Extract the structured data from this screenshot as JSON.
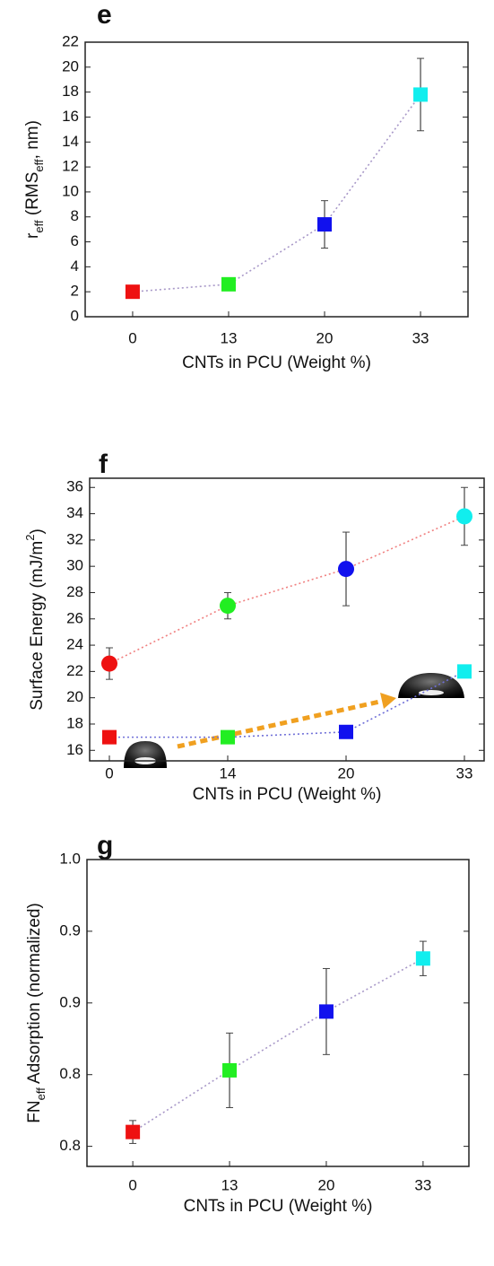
{
  "chart_data": [
    {
      "type": "line",
      "title": "e",
      "ylabel_parts": [
        {
          "text": "r"
        },
        {
          "text": "eff",
          "shift": "sub"
        },
        {
          "text": " (RMS"
        },
        {
          "text": "eff",
          "shift": "sub"
        },
        {
          "text": ", nm)"
        }
      ],
      "xlabel": "CNTs in PCU (Weight %)",
      "categories": [
        "0",
        "13",
        "20",
        "33"
      ],
      "series": [
        {
          "marker": "square",
          "line_color": "#a898c8",
          "colors": [
            "#ee1111",
            "#22ee22",
            "#1111ee",
            "#11eeee"
          ],
          "values": [
            2.0,
            2.6,
            7.4,
            17.8
          ],
          "errors": [
            0.3,
            0.3,
            1.9,
            2.9
          ]
        }
      ],
      "ylim": [
        0,
        22
      ],
      "yticks": [
        0,
        2,
        4,
        6,
        8,
        10,
        12,
        14,
        16,
        18,
        20,
        22
      ]
    },
    {
      "type": "line",
      "title": "f",
      "ylabel_parts": [
        {
          "text": "Surface Energy (mJ/m"
        },
        {
          "text": "2",
          "shift": "super"
        },
        {
          "text": ")"
        }
      ],
      "xlabel": "CNTs in PCU (Weight %)",
      "categories": [
        "0",
        "14",
        "20",
        "33"
      ],
      "series": [
        {
          "marker": "circle",
          "line_color": "#f08080",
          "colors": [
            "#ee1111",
            "#22ee22",
            "#1111ee",
            "#11eeee"
          ],
          "values": [
            22.6,
            27.0,
            29.8,
            33.8
          ],
          "errors": [
            1.2,
            1.0,
            2.8,
            2.2
          ]
        },
        {
          "marker": "square",
          "line_color": "#7070d8",
          "colors": [
            "#ee1111",
            "#22ee22",
            "#1111ee",
            "#11eeee"
          ],
          "values": [
            17.0,
            17.0,
            17.4,
            22.0
          ],
          "errors": [
            0.2,
            0.2,
            0.1,
            0.3
          ]
        }
      ],
      "ylim": [
        15.2,
        36.7
      ],
      "yticks": [
        16,
        18,
        20,
        22,
        24,
        26,
        28,
        30,
        32,
        34,
        36
      ]
    },
    {
      "type": "line",
      "title": "g",
      "ylabel_parts": [
        {
          "text": "FN"
        },
        {
          "text": "eff",
          "shift": "sub"
        },
        {
          "text": " Adsorption (normalized)"
        }
      ],
      "xlabel": "CNTs in PCU (Weight %)",
      "categories": [
        "0",
        "13",
        "20",
        "33"
      ],
      "series": [
        {
          "marker": "square",
          "line_color": "#a898c8",
          "colors": [
            "#ee1111",
            "#22ee22",
            "#1111ee",
            "#11eeee"
          ],
          "values": [
            0.81,
            0.853,
            0.894,
            0.931
          ],
          "errors": [
            0.008,
            0.026,
            0.03,
            0.012
          ]
        }
      ],
      "ylim": [
        0.786,
        1.0
      ],
      "yticks": [
        {
          "value": 0.8,
          "label": "0.8"
        },
        {
          "value": 0.85,
          "label": "0.8"
        },
        {
          "value": 0.9,
          "label": "0.9"
        },
        {
          "value": 0.95,
          "label": "0.9"
        },
        {
          "value": 1.0,
          "label": "1.0"
        }
      ]
    }
  ]
}
